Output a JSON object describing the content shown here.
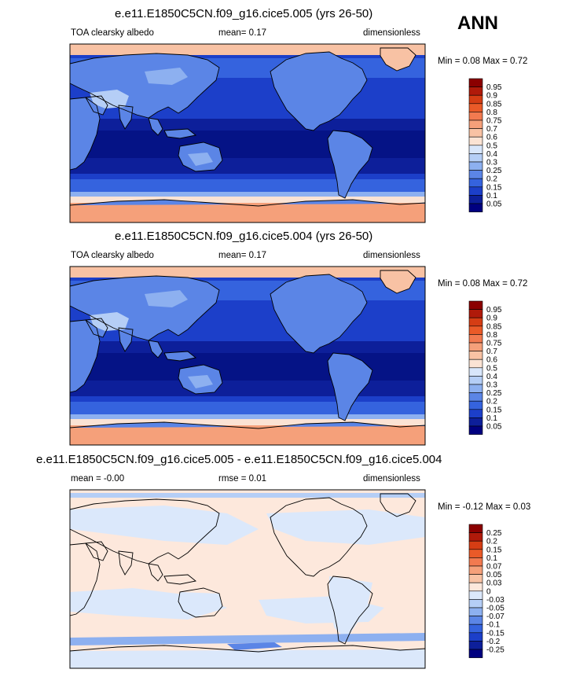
{
  "season": "ANN",
  "panels": [
    {
      "title": "e.e11.E1850C5CN.f09_g16.cice5.005 (yrs 26-50)",
      "left_label": "TOA clearsky albedo",
      "mid_label": "mean=   0.17",
      "right_label": "dimensionless",
      "minmax": "Min =   0.08 Max =   0.72",
      "colorbar": {
        "labels": [
          "0.95",
          "0.9",
          "0.85",
          "0.8",
          "0.75",
          "0.7",
          "0.6",
          "0.5",
          "0.4",
          "0.3",
          "0.25",
          "0.2",
          "0.15",
          "0.1",
          "0.05"
        ],
        "colors": [
          "#8b0000",
          "#b01a0a",
          "#d53d14",
          "#ea5a28",
          "#f27a50",
          "#f5a07a",
          "#f8c2a4",
          "#fbe3d4",
          "#d8e6fb",
          "#b5cef6",
          "#8db0f0",
          "#5b85e6",
          "#3563de",
          "#1c3fc9",
          "#0d1f9a",
          "#000080"
        ]
      }
    },
    {
      "title": "e.e11.E1850C5CN.f09_g16.cice5.004 (yrs 26-50)",
      "left_label": "TOA clearsky albedo",
      "mid_label": "mean=   0.17",
      "right_label": "dimensionless",
      "minmax": "Min =   0.08 Max =   0.72",
      "colorbar": {
        "labels": [
          "0.95",
          "0.9",
          "0.85",
          "0.8",
          "0.75",
          "0.7",
          "0.6",
          "0.5",
          "0.4",
          "0.3",
          "0.25",
          "0.2",
          "0.15",
          "0.1",
          "0.05"
        ],
        "colors": [
          "#8b0000",
          "#b01a0a",
          "#d53d14",
          "#ea5a28",
          "#f27a50",
          "#f5a07a",
          "#f8c2a4",
          "#fbe3d4",
          "#d8e6fb",
          "#b5cef6",
          "#8db0f0",
          "#5b85e6",
          "#3563de",
          "#1c3fc9",
          "#0d1f9a",
          "#000080"
        ]
      }
    },
    {
      "title": "e.e11.E1850C5CN.f09_g16.cice5.005 - e.e11.E1850C5CN.f09_g16.cice5.004",
      "left_label": "mean = -0.00",
      "mid_label": "rmse =  0.01",
      "right_label": "dimensionless",
      "minmax": "Min =  -0.12 Max =   0.03",
      "colorbar": {
        "labels": [
          "0.25",
          "0.2",
          "0.15",
          "0.1",
          "0.07",
          "0.05",
          "0.03",
          "0",
          "-0.03",
          "-0.05",
          "-0.07",
          "-0.1",
          "-0.15",
          "-0.2",
          "-0.25"
        ],
        "colors": [
          "#8b0000",
          "#b01a0a",
          "#d53d14",
          "#ea5a28",
          "#f27a50",
          "#f5a07a",
          "#f8c2a4",
          "#fde8dc",
          "#dbe8fb",
          "#b5cef6",
          "#8db0f0",
          "#5b85e6",
          "#3563de",
          "#1c3fc9",
          "#0d1f9a",
          "#000080"
        ]
      }
    }
  ]
}
